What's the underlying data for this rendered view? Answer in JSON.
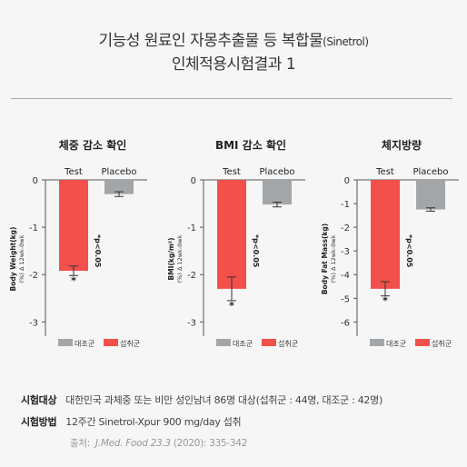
{
  "header": {
    "title_line1_main": "기능성 원료인 자몽추출물 등 복합물",
    "title_line1_paren": "(Sinetrol)",
    "title_line2": "인체적용시험결과 1"
  },
  "colors": {
    "test": "#f2504b",
    "placebo": "#a3a6a8",
    "axis": "#555555",
    "background": "#f6f6f6"
  },
  "chart_data": [
    {
      "type": "bar",
      "title": "체중 감소 확인",
      "categories": [
        "Test",
        "Placebo"
      ],
      "values": [
        -1.92,
        -0.3
      ],
      "errors": [
        0.1,
        0.05
      ],
      "ylabel": "Body Weight(kg)",
      "ylabel_sub": "(%) Δ 12wk-0wk",
      "ylim": [
        -3.3,
        0
      ],
      "yticks": [
        "0",
        "-1",
        "-2",
        "-3"
      ],
      "ytick_values": [
        0,
        -1,
        -2,
        -3
      ],
      "significance": "*p<0.05",
      "star": "*",
      "legend": [
        "대조군",
        "섭취군"
      ],
      "legend_position": "bottom"
    },
    {
      "type": "bar",
      "title": "BMI 감소 확인",
      "categories": [
        "Test",
        "Placebo"
      ],
      "values": [
        -2.3,
        -0.52
      ],
      "errors": [
        0.25,
        0.05
      ],
      "ylabel": "BMI(kg/m²)",
      "ylabel_sub": "(%) Δ 12wk-0wk",
      "ylim": [
        -3.3,
        0
      ],
      "yticks": [
        "0",
        "-1",
        "-2",
        "-3"
      ],
      "ytick_values": [
        0,
        -1,
        -2,
        -3
      ],
      "significance": "*p<0.05",
      "star": "*",
      "legend": [
        "대조군",
        "섭취군"
      ],
      "legend_position": "bottom"
    },
    {
      "type": "bar",
      "title": "체지방량",
      "categories": [
        "Test",
        "Placebo"
      ],
      "values": [
        -4.6,
        -1.25
      ],
      "errors": [
        0.3,
        0.07
      ],
      "ylabel": "Body Fat Mass(kg)",
      "ylabel_sub": "(%) Δ 12wk-0wk",
      "ylim": [
        -6.6,
        0
      ],
      "yticks": [
        "0",
        "-1",
        "-2",
        "-3",
        "-4",
        "-5",
        "-6"
      ],
      "ytick_values": [
        0,
        -1,
        -2,
        -3,
        -4,
        -5,
        -6
      ],
      "significance": "*p<0.05",
      "star": "*",
      "legend": [
        "대조군",
        "섭취군"
      ],
      "legend_position": "bottom"
    }
  ],
  "footer": {
    "subject_label": "시험대상",
    "subject_text": "대한민국 과체중 또는 비만 성인남녀 86명 대상(섭취군 : 44명, 대조군 : 42명)",
    "method_label": "시험방법",
    "method_text": "12주간 Sinetrol-Xpur 900 mg/day 섭취",
    "source_prefix": "출처:",
    "source_journal": "J.Med. Food 23.3",
    "source_rest": "(2020): 335-342"
  }
}
